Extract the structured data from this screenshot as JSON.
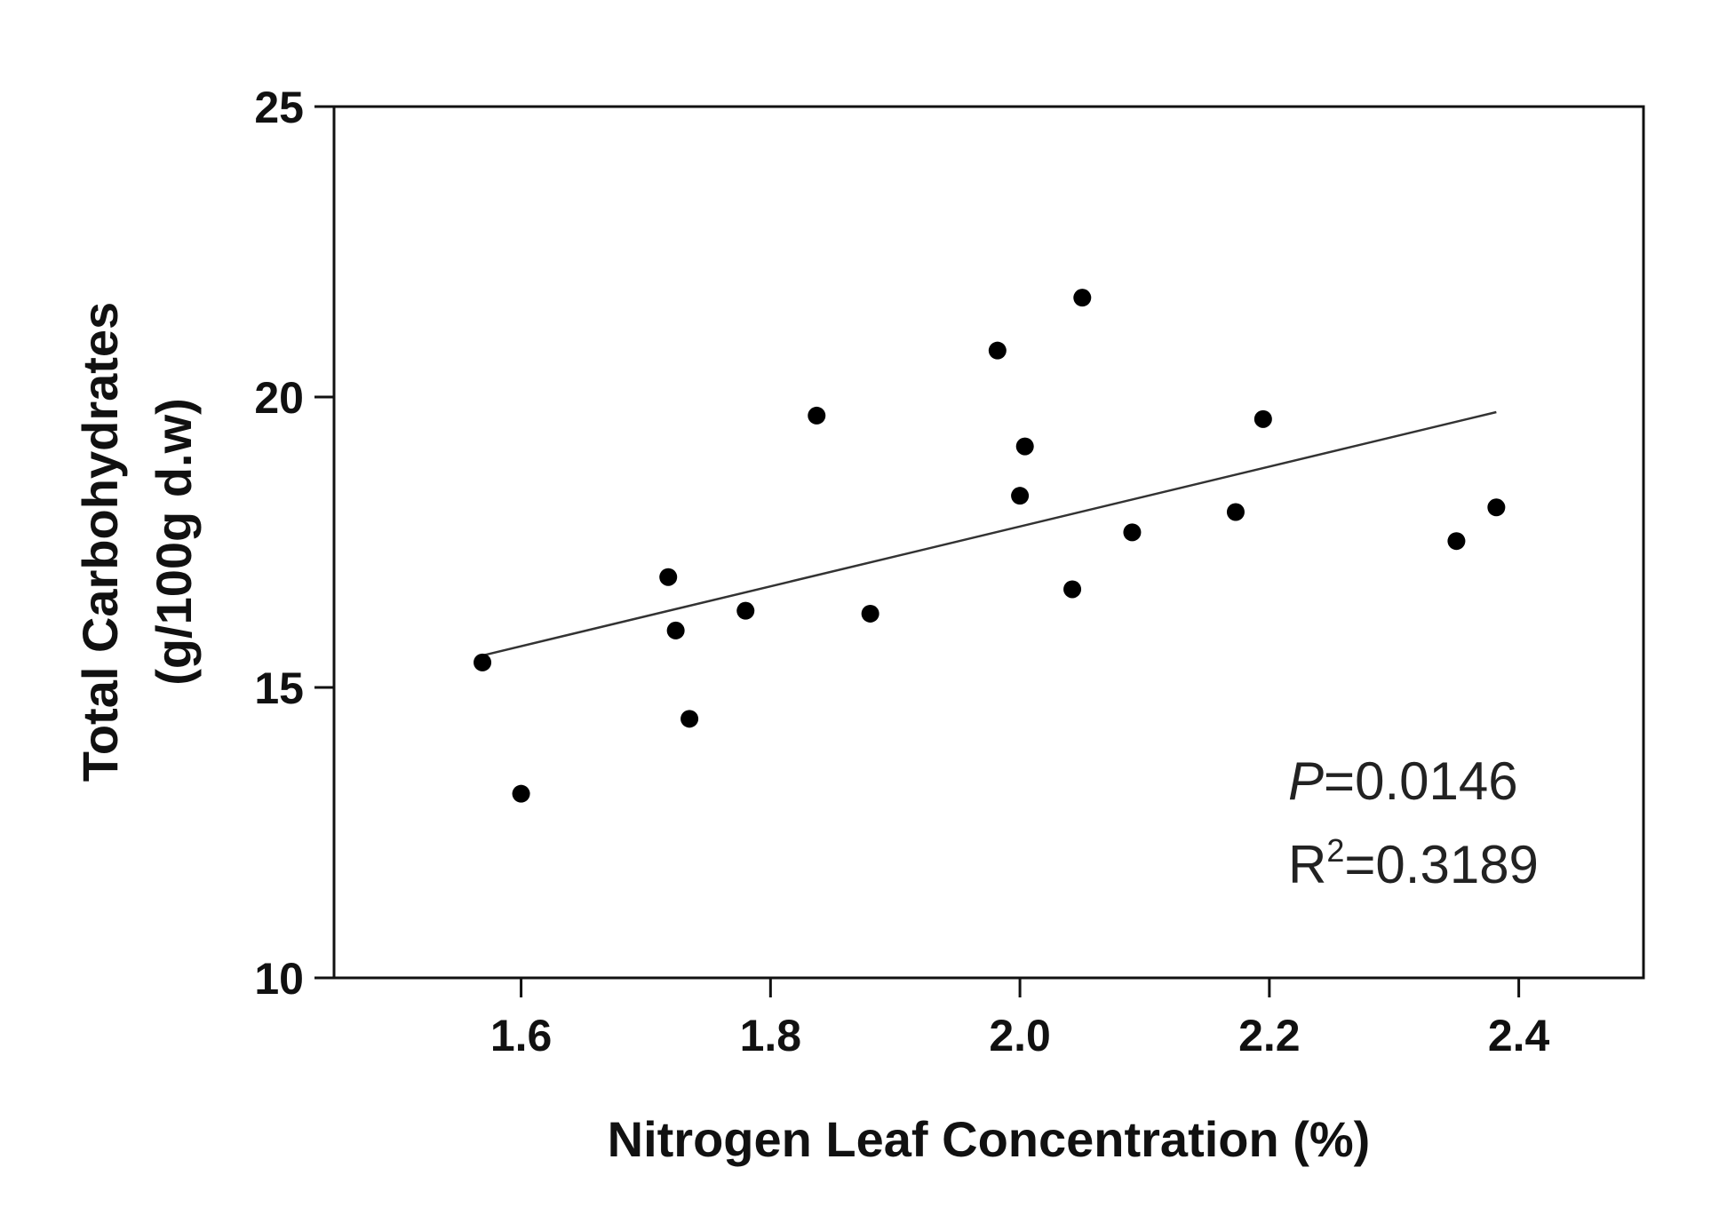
{
  "chart_data": {
    "type": "scatter",
    "xlabel": "Nitrogen Leaf Concentration (%)",
    "ylabel_line1": "Total Carbohydrates",
    "ylabel_line2": "(g/100g d.w)",
    "xlim": [
      1.45,
      2.5
    ],
    "ylim": [
      10,
      25
    ],
    "x_ticks": [
      1.6,
      1.8,
      2.0,
      2.2,
      2.4
    ],
    "x_tick_labels": [
      "1.6",
      "1.8",
      "2.0",
      "2.2",
      "2.4"
    ],
    "y_ticks": [
      10,
      15,
      20,
      25
    ],
    "y_tick_labels": [
      "10",
      "15",
      "20",
      "25"
    ],
    "points": [
      {
        "x": 1.569,
        "y": 15.43
      },
      {
        "x": 1.6,
        "y": 13.17
      },
      {
        "x": 1.718,
        "y": 16.9
      },
      {
        "x": 1.724,
        "y": 15.98
      },
      {
        "x": 1.735,
        "y": 14.46
      },
      {
        "x": 1.78,
        "y": 16.32
      },
      {
        "x": 1.837,
        "y": 19.68
      },
      {
        "x": 1.88,
        "y": 16.27
      },
      {
        "x": 1.982,
        "y": 20.8
      },
      {
        "x": 2.0,
        "y": 18.3
      },
      {
        "x": 2.004,
        "y": 19.15
      },
      {
        "x": 2.042,
        "y": 16.69
      },
      {
        "x": 2.05,
        "y": 21.71
      },
      {
        "x": 2.09,
        "y": 17.67
      },
      {
        "x": 2.173,
        "y": 18.02
      },
      {
        "x": 2.195,
        "y": 19.62
      },
      {
        "x": 2.35,
        "y": 17.52
      },
      {
        "x": 2.382,
        "y": 18.1
      }
    ],
    "fit_line": {
      "x1": 1.569,
      "y1": 15.55,
      "x2": 2.382,
      "y2": 19.74
    },
    "stats": {
      "p_label": "P",
      "p_value": "=0.0146",
      "r2_label": "R",
      "r2_sup": "2",
      "r2_value": "=0.3189"
    }
  }
}
